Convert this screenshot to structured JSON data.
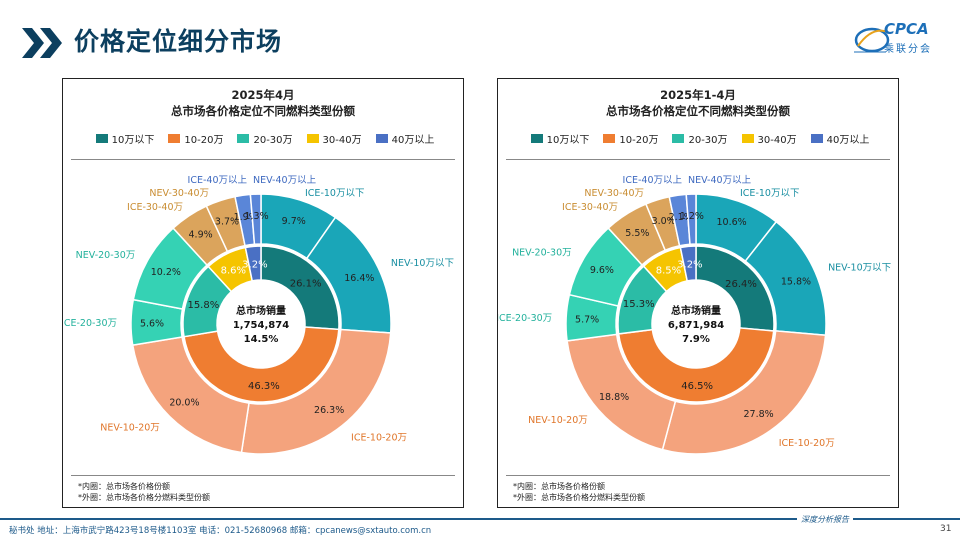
{
  "page": {
    "title": "价格定位细分市场",
    "logo": "CPCA",
    "logo_sub": "乘联分会",
    "footer_text": "秘书处   地址：上海市武宁路423号18号楼1103室   电话：021-52680968   邮箱：cpcanews@sxtauto.com.cn",
    "footer_right": "深度分析报告",
    "page_number": "31"
  },
  "legend": [
    {
      "label": "10万以下",
      "color": "#147a7a"
    },
    {
      "label": "10-20万",
      "color": "#ef7d31"
    },
    {
      "label": "20-30万",
      "color": "#2bbca6"
    },
    {
      "label": "30-40万",
      "color": "#f5c400"
    },
    {
      "label": "40万以上",
      "color": "#4a70c4"
    }
  ],
  "notes": [
    "*内圈：总市场各价格份额",
    "*外圈：总市场各价格分燃料类型份额"
  ],
  "chart_data": [
    {
      "type": "pie",
      "title_line1": "2025年4月",
      "title_line2": "总市场各价格定位不同燃料类型份额",
      "center_label": "总市场销量",
      "center_value": "1,754,874",
      "center_growth": "14.5%",
      "inner": [
        {
          "name": "10万以下",
          "value": 26.1,
          "label": "26.1%"
        },
        {
          "name": "10-20万",
          "value": 46.3,
          "label": "46.3%"
        },
        {
          "name": "20-30万",
          "value": 15.8,
          "label": "15.8%"
        },
        {
          "name": "30-40万",
          "value": 8.6,
          "label": "8.6%"
        },
        {
          "name": "40万以上",
          "value": 3.2,
          "label": "3.2%"
        }
      ],
      "outer": [
        {
          "name": "ICE-10万以下",
          "value": 9.7,
          "label": "9.7%"
        },
        {
          "name": "NEV-10万以下",
          "value": 16.4,
          "label": "16.4%"
        },
        {
          "name": "ICE-10-20万",
          "value": 26.3,
          "label": "26.3%"
        },
        {
          "name": "NEV-10-20万",
          "value": 20.0,
          "label": "20.0%"
        },
        {
          "name": "ICE-20-30万",
          "value": 5.6,
          "label": "5.6%"
        },
        {
          "name": "NEV-20-30万",
          "value": 10.2,
          "label": "10.2%"
        },
        {
          "name": "ICE-30-40万",
          "value": 4.9,
          "label": "4.9%"
        },
        {
          "name": "NEV-30-40万",
          "value": 3.7,
          "label": "3.7%"
        },
        {
          "name": "ICE-40万以上",
          "value": 1.9,
          "label": "1.9%"
        },
        {
          "name": "NEV-40万以上",
          "value": 1.3,
          "label": "1.3%"
        }
      ]
    },
    {
      "type": "pie",
      "title_line1": "2025年1-4月",
      "title_line2": "总市场各价格定位不同燃料类型份额",
      "center_label": "总市场销量",
      "center_value": "6,871,984",
      "center_growth": "7.9%",
      "inner": [
        {
          "name": "10万以下",
          "value": 26.4,
          "label": "26.4%"
        },
        {
          "name": "10-20万",
          "value": 46.5,
          "label": "46.5%"
        },
        {
          "name": "20-30万",
          "value": 15.3,
          "label": "15.3%"
        },
        {
          "name": "30-40万",
          "value": 8.5,
          "label": "8.5%"
        },
        {
          "name": "40万以上",
          "value": 3.2,
          "label": "3.2%"
        }
      ],
      "outer": [
        {
          "name": "ICE-10万以下",
          "value": 10.6,
          "label": "10.6%"
        },
        {
          "name": "NEV-10万以下",
          "value": 15.8,
          "label": "15.8%"
        },
        {
          "name": "ICE-10-20万",
          "value": 27.8,
          "label": "27.8%"
        },
        {
          "name": "NEV-10-20万",
          "value": 18.8,
          "label": "18.8%"
        },
        {
          "name": "ICE-20-30万",
          "value": 5.7,
          "label": "5.7%"
        },
        {
          "name": "NEV-20-30万",
          "value": 9.6,
          "label": "9.6%"
        },
        {
          "name": "ICE-30-40万",
          "value": 5.5,
          "label": "5.5%"
        },
        {
          "name": "NEV-30-40万",
          "value": 3.0,
          "label": "3.0%"
        },
        {
          "name": "ICE-40万以上",
          "value": 2.1,
          "label": "2.1%"
        },
        {
          "name": "NEV-40万以上",
          "value": 1.2,
          "label": "1.2%"
        }
      ]
    }
  ]
}
